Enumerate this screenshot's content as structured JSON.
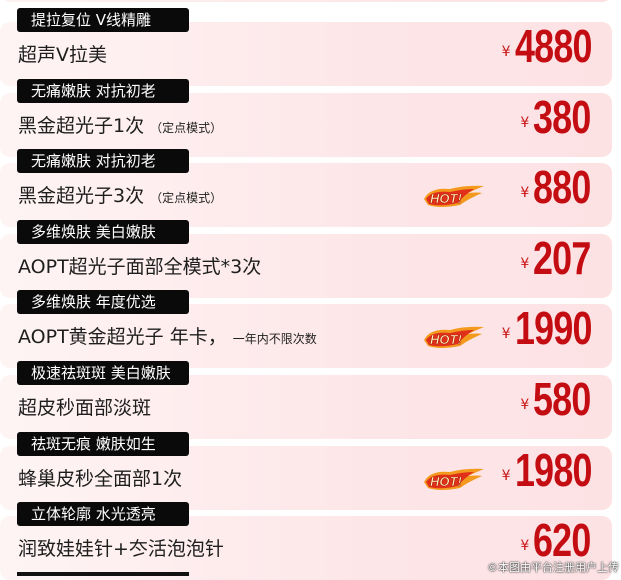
{
  "currency_symbol": "¥",
  "items": [
    {
      "tag": "提拉复位 V线精雕",
      "name": "超声V拉美",
      "note": "",
      "price": "4880",
      "hot": false
    },
    {
      "tag": "无痛嫩肤 对抗初老",
      "name": "黑金超光子1次",
      "note": "（定点模式）",
      "price": "380",
      "hot": false
    },
    {
      "tag": "无痛嫩肤 对抗初老",
      "name": "黑金超光子3次",
      "note": "（定点模式）",
      "price": "880",
      "hot": true
    },
    {
      "tag": "多维焕肤 美白嫩肤",
      "name": "AOPT超光子面部全模式*3次",
      "note": "",
      "price": "207",
      "hot": false
    },
    {
      "tag": "多维焕肤 年度优选",
      "name": "AOPT黄金超光子 年卡，",
      "note": "一年内不限次数",
      "price": "1990",
      "hot": true
    },
    {
      "tag": "极速祛斑斑 美白嫩肤",
      "name": "超皮秒面部淡斑",
      "note": "",
      "price": "580",
      "hot": false
    },
    {
      "tag": "祛斑无痕 嫩肤如生",
      "name": "蜂巢皮秒全面部1次",
      "note": "",
      "price": "1980",
      "hot": true
    },
    {
      "tag": "立体轮廓 水光透亮",
      "name": "润致娃娃针+冭活泡泡针",
      "note": "",
      "price": "620",
      "hot": false
    }
  ],
  "hot_badge": "HOT!",
  "watermark": "©本图由平台注册用户上传",
  "colors": {
    "price": "#c30d12",
    "tag_bg": "#0a0a0a",
    "card_bg": "#fde6e8"
  }
}
